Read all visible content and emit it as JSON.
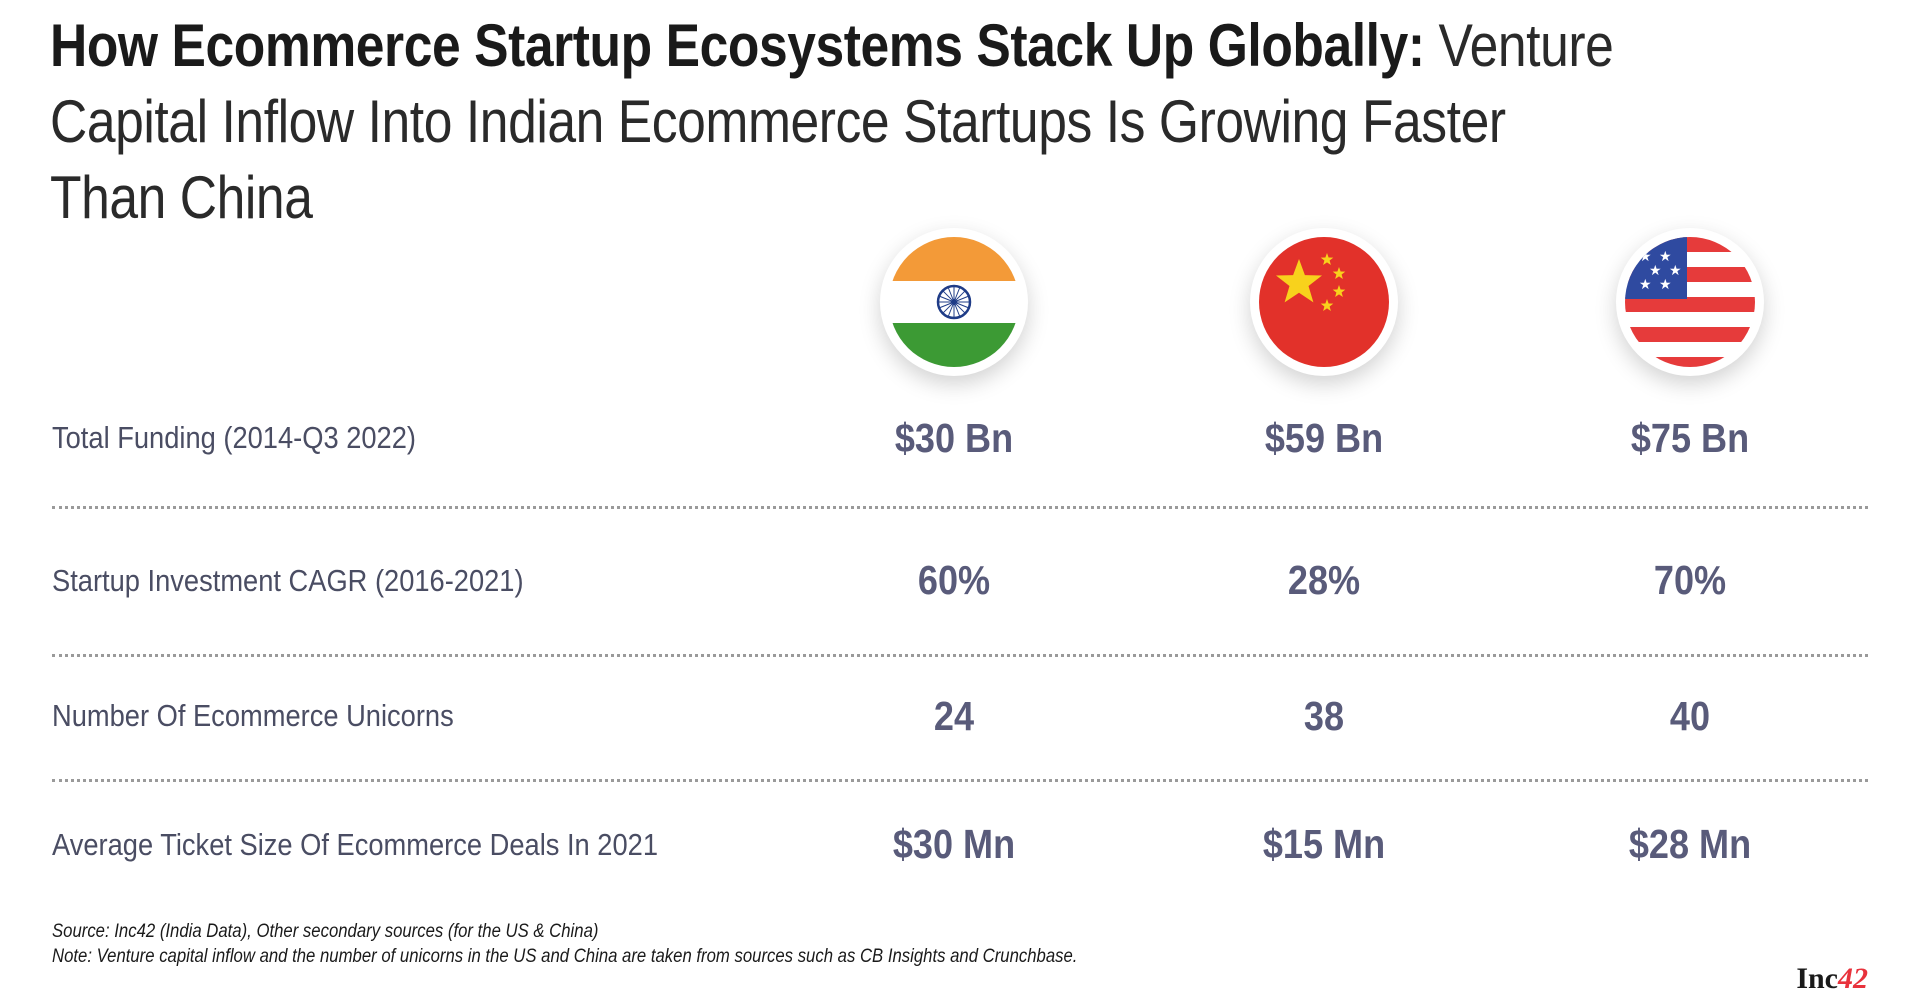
{
  "title": {
    "bold": "How Ecommerce Startup Ecosystems Stack Up Globally:",
    "light": " Venture Capital Inflow Into Indian Ecommerce Startups Is Growing Faster Than China"
  },
  "countries": [
    {
      "icon": "india-flag-icon"
    },
    {
      "icon": "china-flag-icon"
    },
    {
      "icon": "usa-flag-icon"
    }
  ],
  "rows": [
    {
      "label": "Total Funding (2014-Q3 2022)",
      "values": [
        "$30 Bn",
        "$59 Bn",
        "$75 Bn"
      ]
    },
    {
      "label": "Startup Investment CAGR (2016-2021)",
      "values": [
        "60%",
        "28%",
        "70%"
      ]
    },
    {
      "label": "Number Of Ecommerce Unicorns",
      "values": [
        "24",
        "38",
        "40"
      ]
    },
    {
      "label": "Average Ticket Size Of Ecommerce Deals In 2021",
      "values": [
        "$30 Mn",
        "$15 Mn",
        "$28 Mn"
      ]
    }
  ],
  "footer": {
    "source": "Source: Inc42 (India Data), Other secondary sources (for the US & China)",
    "note": "Note: Venture capital inflow and the number of unicorns in the US and China are taken from sources such as CB Insights and Crunchbase."
  },
  "brand": {
    "name": "Inc",
    "number": "42"
  },
  "colors": {
    "value_text": "#595b7a",
    "label_text": "#4a4d63",
    "india_saffron": "#f39a38",
    "india_green": "#3c9a34",
    "india_chakra": "#1f3c87",
    "china_red": "#e2312a",
    "china_star": "#f8d21c",
    "usa_red": "#e63b3b",
    "usa_blue": "#2f4aa0",
    "brand_accent": "#e8323c"
  }
}
